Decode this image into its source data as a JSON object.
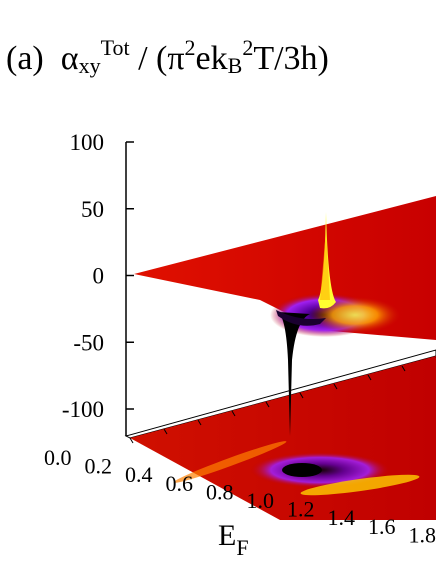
{
  "figure": {
    "panel_label": "(a)",
    "title_main": "α",
    "title_sub": "xy",
    "title_sup": "Tot",
    "title_rest_1": " / (π",
    "title_sup2": "2",
    "title_rest_2": "ek",
    "title_sub2": "B",
    "title_sup3": "2",
    "title_rest_3": "T/3h)"
  },
  "chart_data": {
    "type": "surface",
    "z_ticks": [
      "100",
      "50",
      "0",
      "-50",
      "-100"
    ],
    "x_ticks": [
      "0.0",
      "0.2",
      "0.4",
      "0.6",
      "0.8",
      "1.0",
      "1.2",
      "1.4",
      "1.6",
      "1.8"
    ],
    "xlabel": "E",
    "xlabel_sub": "F",
    "z_range": [
      -100,
      100
    ],
    "x_range": [
      0.0,
      1.8
    ],
    "features": [
      {
        "kind": "dip",
        "E_F": 1.0,
        "value": -100
      },
      {
        "kind": "peak",
        "E_F": 1.2,
        "value": 45
      }
    ],
    "colormap": [
      "#000000",
      "#5a00a0",
      "#a020f0",
      "#c00000",
      "#e04000",
      "#ffa000",
      "#ffff00"
    ]
  }
}
